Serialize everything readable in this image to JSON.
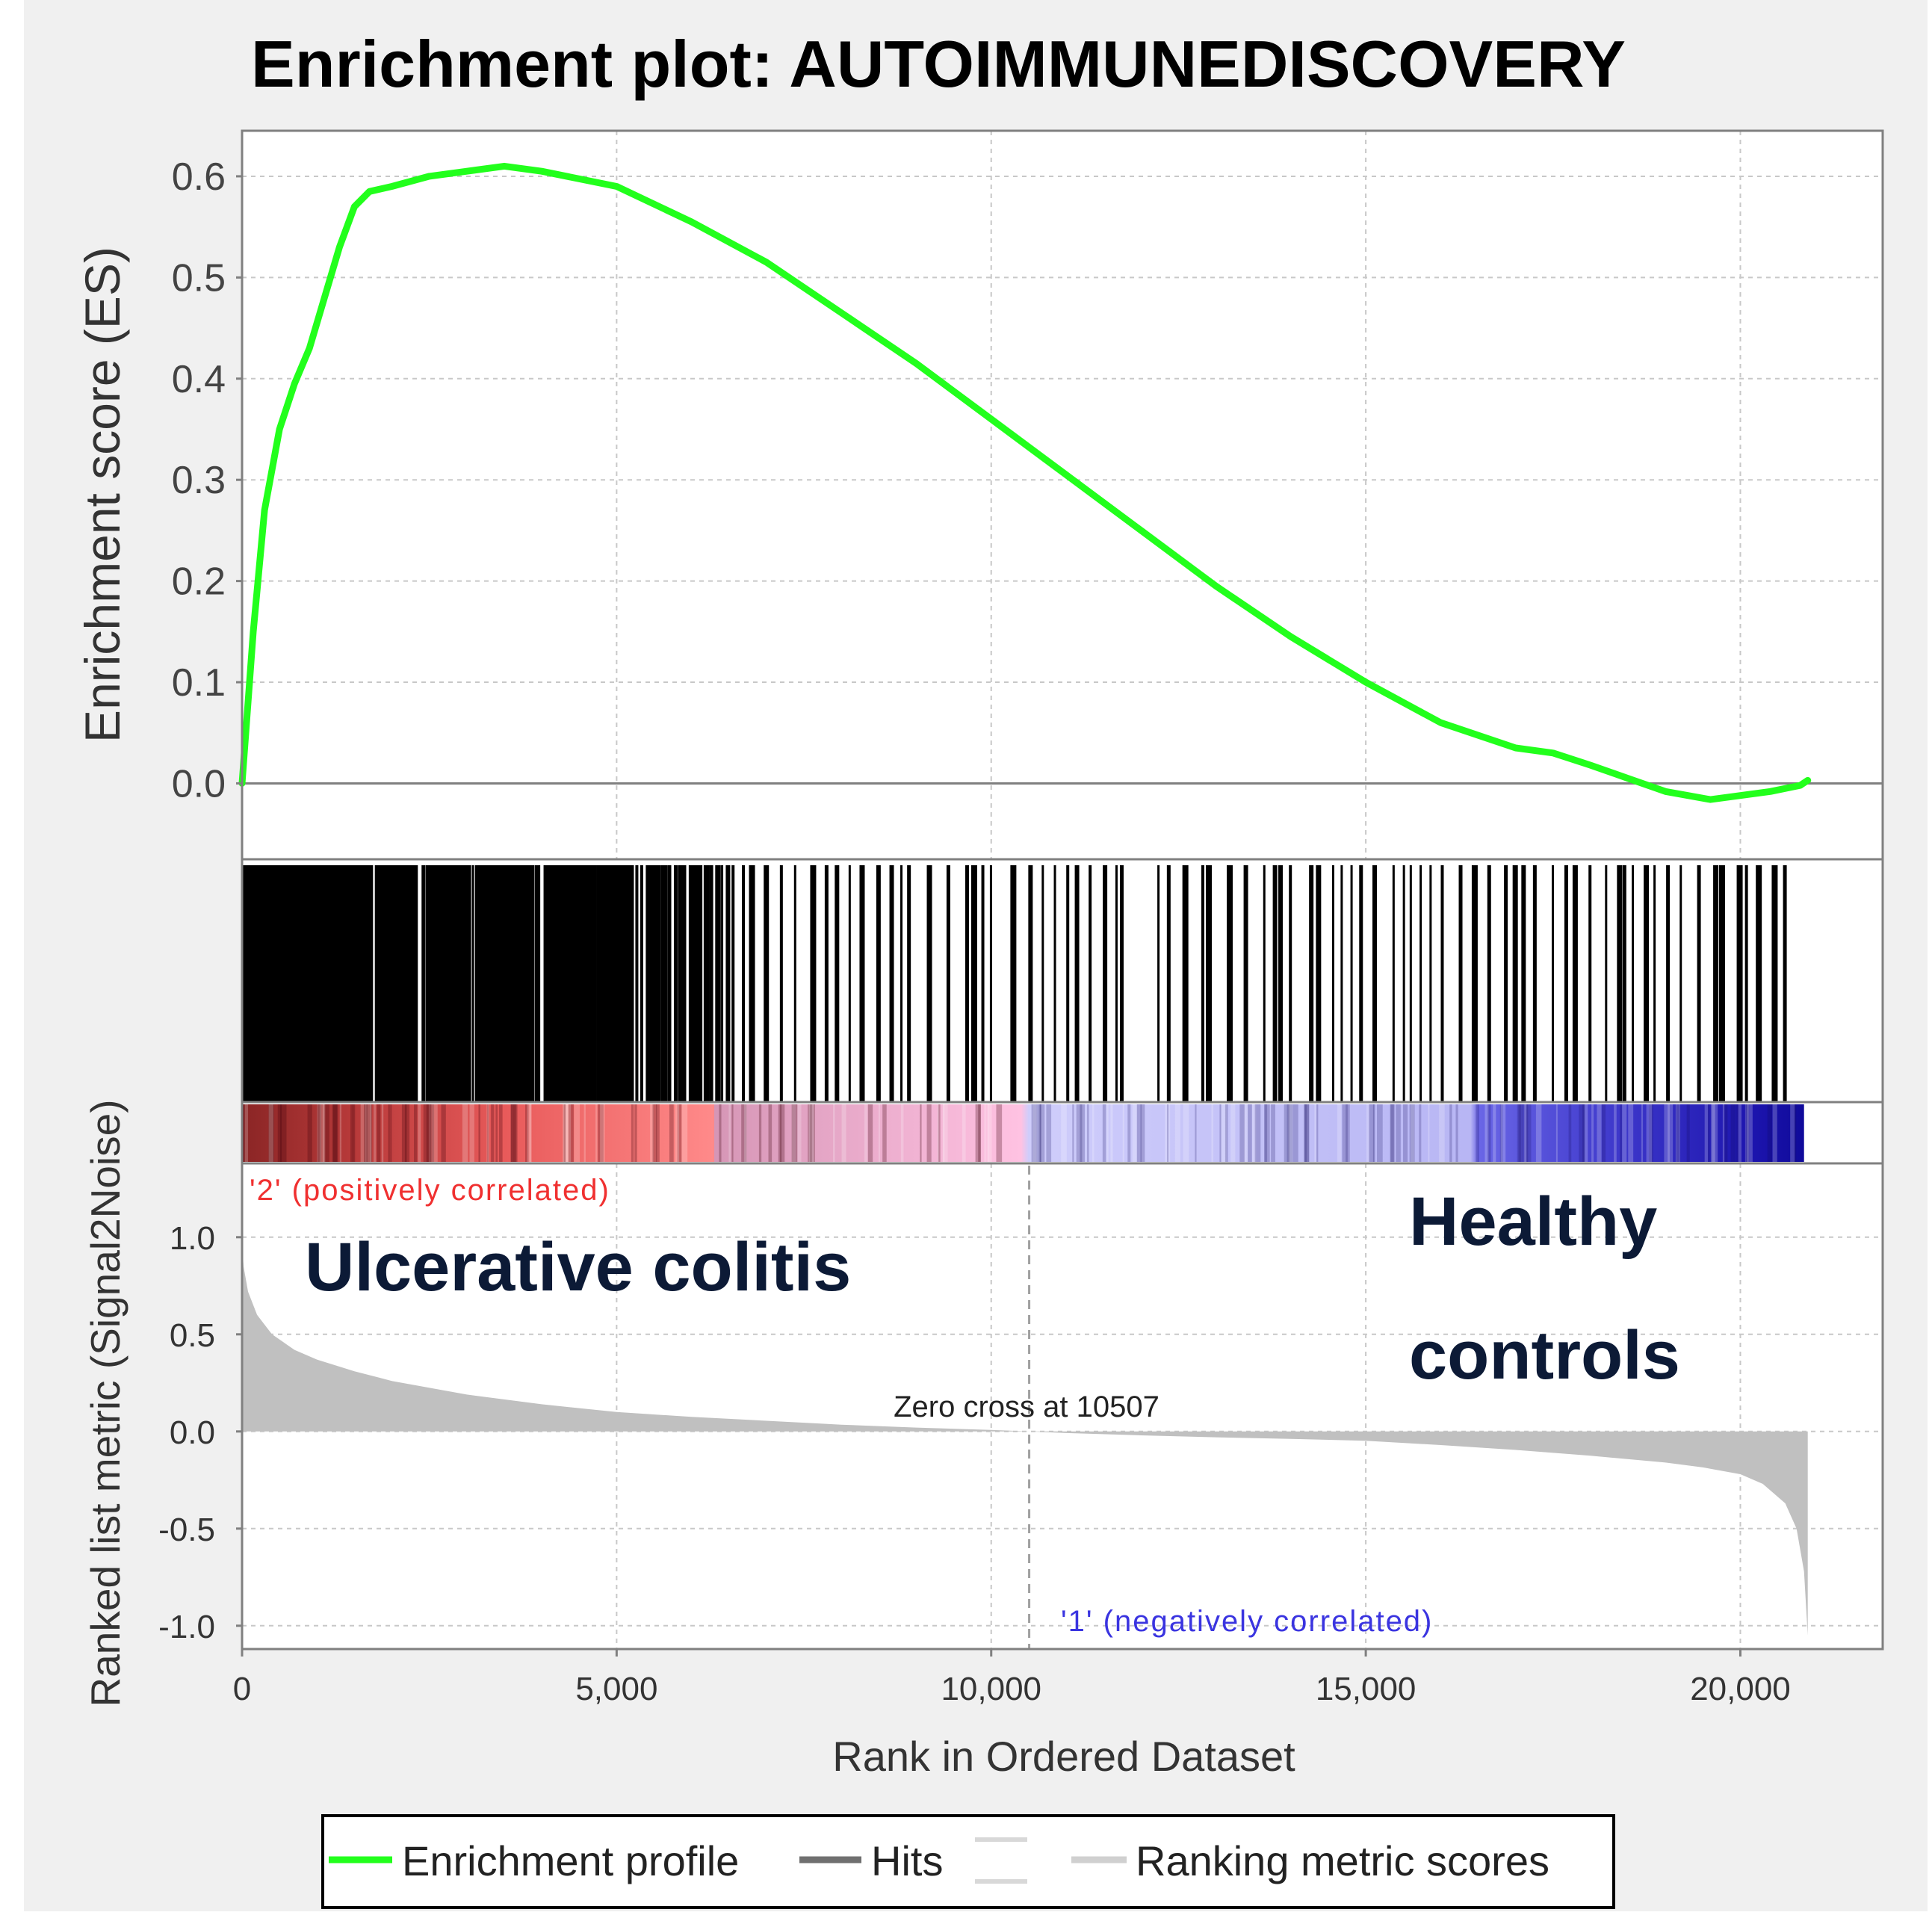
{
  "chart_data": {
    "title": "Enrichment plot: AUTOIMMUNEDISCOVERY",
    "x_axis": {
      "label": "Rank in Ordered Dataset",
      "range": [
        0,
        21900
      ],
      "ticks": [
        0,
        5000,
        10000,
        15000,
        20000
      ],
      "tick_labels": [
        "0",
        "5,000",
        "10,000",
        "15,000",
        "20,000"
      ],
      "grid": true
    },
    "panels": [
      {
        "type": "line",
        "name": "enrichment-score",
        "ylabel": "Enrichment score (ES)",
        "ylim": [
          -0.075,
          0.645
        ],
        "yticks": [
          0.0,
          0.1,
          0.2,
          0.3,
          0.4,
          0.5,
          0.6
        ],
        "ytick_labels": [
          "0.0",
          "0.1",
          "0.2",
          "0.3",
          "0.4",
          "0.5",
          "0.6"
        ],
        "grid": true,
        "series": [
          {
            "name": "Enrichment profile",
            "color": "#22ff1c",
            "x": [
              0,
              150,
              300,
              500,
              700,
              900,
              1100,
              1300,
              1500,
              1700,
              2000,
              2500,
              3000,
              3500,
              4000,
              5000,
              6000,
              7000,
              8000,
              9000,
              10000,
              11000,
              12000,
              13000,
              14000,
              15000,
              16000,
              17000,
              17500,
              18000,
              18500,
              19000,
              19300,
              19600,
              20000,
              20400,
              20800,
              20900
            ],
            "y": [
              0.0,
              0.15,
              0.27,
              0.35,
              0.395,
              0.43,
              0.48,
              0.53,
              0.57,
              0.585,
              0.59,
              0.6,
              0.605,
              0.61,
              0.605,
              0.59,
              0.555,
              0.515,
              0.465,
              0.415,
              0.36,
              0.305,
              0.25,
              0.195,
              0.145,
              0.1,
              0.06,
              0.035,
              0.03,
              0.018,
              0.005,
              -0.008,
              -0.012,
              -0.016,
              -0.012,
              -0.008,
              -0.002,
              0.003
            ]
          }
        ]
      },
      {
        "type": "hits",
        "name": "hits",
        "color": "#000000",
        "x_range": [
          0,
          20800
        ],
        "dense_until": 6500,
        "gap_ranges": [
          [
            11800,
            12200
          ],
          [
            10000,
            10200
          ]
        ],
        "dense_segments": [
          [
            0,
            1650
          ],
          [
            1800,
            2300
          ],
          [
            2450,
            3000
          ],
          [
            3150,
            3900
          ],
          [
            4050,
            4700
          ],
          [
            4800,
            5200
          ]
        ]
      },
      {
        "type": "heatmap",
        "name": "ranking-colorbar",
        "stops": [
          {
            "x": 0,
            "color": "#8a2525"
          },
          {
            "x": 1500,
            "color": "#b83a3a"
          },
          {
            "x": 3500,
            "color": "#e85a5a"
          },
          {
            "x": 6300,
            "color": "#ff8a8a"
          },
          {
            "x": 6300,
            "color": "#d696b6"
          },
          {
            "x": 10400,
            "color": "#ffc2e2"
          },
          {
            "x": 10500,
            "color": "#cfcdfb"
          },
          {
            "x": 16400,
            "color": "#b8b6f4"
          },
          {
            "x": 16500,
            "color": "#6a66e6"
          },
          {
            "x": 18500,
            "color": "#3b35c9"
          },
          {
            "x": 20200,
            "color": "#1c14ad"
          },
          {
            "x": 20850,
            "color": "#0f0a9a"
          }
        ]
      },
      {
        "type": "area",
        "name": "ranked-list-metric",
        "ylabel": "Ranked list metric (Signal2Noise)",
        "ylim": [
          -1.12,
          1.38
        ],
        "yticks": [
          1.0,
          0.5,
          0.0,
          -0.5,
          -1.0
        ],
        "ytick_labels": [
          "1.0",
          "0.5",
          "0.0",
          "-0.5",
          "-1.0"
        ],
        "grid": true,
        "color": "#c0c0c0",
        "x": [
          0,
          20,
          80,
          200,
          400,
          700,
          1000,
          1500,
          2000,
          3000,
          4000,
          5000,
          6000,
          7000,
          8000,
          9000,
          10000,
          10507,
          11000,
          12000,
          13000,
          14000,
          15000,
          16000,
          17000,
          18000,
          19000,
          19500,
          20000,
          20300,
          20600,
          20750,
          20850,
          20900
        ],
        "y": [
          0.98,
          0.85,
          0.72,
          0.6,
          0.5,
          0.42,
          0.37,
          0.31,
          0.26,
          0.19,
          0.14,
          0.1,
          0.075,
          0.055,
          0.035,
          0.02,
          0.008,
          0.0,
          -0.008,
          -0.02,
          -0.03,
          -0.038,
          -0.048,
          -0.07,
          -0.095,
          -0.125,
          -0.16,
          -0.185,
          -0.22,
          -0.27,
          -0.37,
          -0.5,
          -0.72,
          -1.05
        ]
      }
    ],
    "annotations": {
      "positive_label": "'2' (positively correlated)",
      "negative_label": "'1' (negatively correlated)",
      "zero_cross_label": "Zero cross at 10507",
      "zero_cross_x": 10507,
      "group_left": "Ulcerative colitis",
      "group_right_line1": "Healthy",
      "group_right_line2": "controls"
    },
    "legend": {
      "position": "bottom",
      "entries": [
        {
          "label": "Enrichment profile",
          "color": "#22ff1c"
        },
        {
          "label": "Hits",
          "color": "#707070"
        },
        {
          "label": "Ranking metric scores",
          "color": "#d0d0d0"
        }
      ]
    },
    "colors": {
      "background": "#f0f0f0",
      "plot_background": "#ffffff",
      "grid": "#c8c8c8",
      "positive_text": "#f03030",
      "negative_text": "#3a34e0"
    }
  }
}
